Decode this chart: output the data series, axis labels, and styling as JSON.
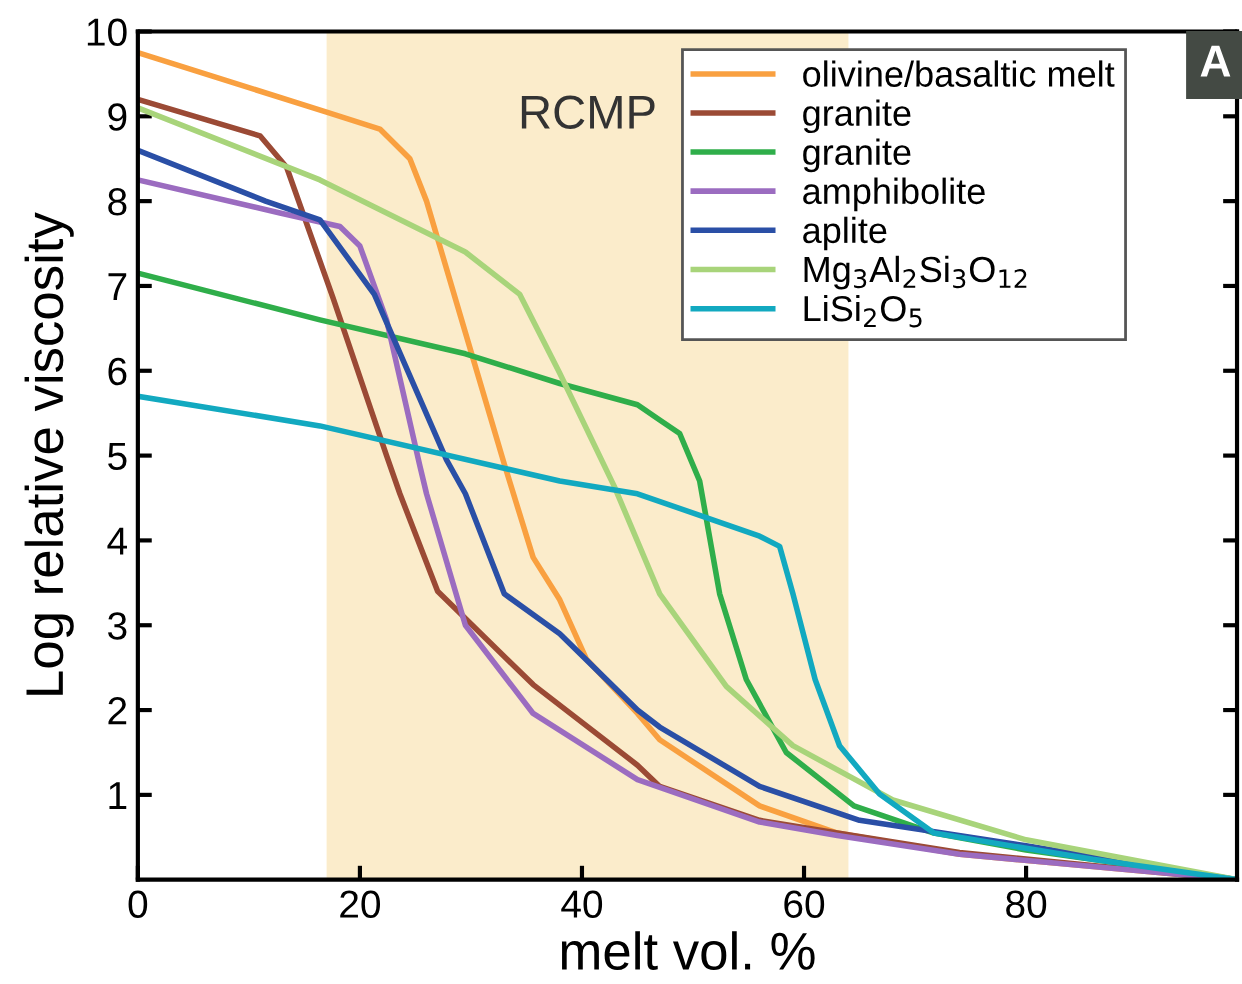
{
  "chart_data": {
    "type": "line",
    "xlabel": "melt vol. %",
    "ylabel": "Log relative viscosity",
    "xlim": [
      0,
      99
    ],
    "ylim": [
      0,
      10
    ],
    "xticks": [
      0,
      20,
      40,
      60,
      80
    ],
    "yticks": [
      1,
      2,
      3,
      4,
      5,
      6,
      7,
      8,
      9,
      10
    ],
    "grid": false,
    "legend": "top right",
    "marker": "none",
    "line_style": "solid",
    "bands": [
      {
        "axis": "x",
        "from": 17,
        "to": 64,
        "label": "RCMP",
        "color": "#fbeccb"
      }
    ],
    "annotations": [
      "A"
    ],
    "series": [
      {
        "name": "olivine/basaltic melt",
        "color": "#f9a040",
        "x": [
          0,
          17,
          21.8,
          24.5,
          26,
          29.5,
          33,
          35.6,
          38,
          40.4,
          45,
          47,
          56,
          63,
          74,
          99
        ],
        "values": [
          9.75,
          9.05,
          8.85,
          8.5,
          8.0,
          6.45,
          4.9,
          3.8,
          3.3,
          2.6,
          1.96,
          1.65,
          0.87,
          0.55,
          0.3,
          0
        ]
      },
      {
        "name": "granite",
        "color": "#9b4a35",
        "x": [
          0,
          11,
          13.4,
          17.6,
          22.4,
          23.6,
          27,
          35.6,
          45,
          47,
          56,
          63,
          74,
          99
        ],
        "values": [
          9.2,
          8.77,
          8.4,
          6.85,
          5.0,
          4.55,
          3.4,
          2.3,
          1.35,
          1.1,
          0.7,
          0.55,
          0.32,
          0
        ]
      },
      {
        "name": "granite",
        "color": "#2fae4a",
        "x": [
          0,
          16.4,
          29.5,
          38,
          45,
          47,
          48.8,
          50.6,
          52.4,
          54.8,
          58.4,
          64.5,
          71.7,
          80,
          99
        ],
        "values": [
          7.15,
          6.6,
          6.2,
          5.85,
          5.6,
          5.42,
          5.26,
          4.7,
          3.37,
          2.36,
          1.5,
          0.87,
          0.55,
          0.35,
          0
        ]
      },
      {
        "name": "amphibolite",
        "color": "#9b6cc0",
        "x": [
          0,
          12.8,
          18.2,
          20,
          22.4,
          25.4,
          26,
          29.5,
          35.6,
          45,
          56,
          63,
          74,
          99
        ],
        "values": [
          8.25,
          7.86,
          7.7,
          7.47,
          6.6,
          4.88,
          4.55,
          3.0,
          1.96,
          1.18,
          0.68,
          0.52,
          0.3,
          0
        ]
      },
      {
        "name": "aplite",
        "color": "#2a4fa6",
        "x": [
          0,
          11.5,
          16.4,
          21.3,
          27.8,
          29.5,
          33,
          38,
          45,
          47,
          56,
          65,
          80,
          99
        ],
        "values": [
          8.6,
          8.0,
          7.78,
          6.9,
          4.95,
          4.55,
          3.37,
          2.9,
          2.0,
          1.8,
          1.1,
          0.7,
          0.4,
          0
        ]
      },
      {
        "name": "Mg$_{3}$Al$_{2}$Si$_{3}$O$_{12}$",
        "color": "#a8d47a",
        "x": [
          0,
          16.4,
          29.5,
          34.4,
          38,
          42.9,
          47,
          53,
          59,
          68,
          80,
          99
        ],
        "values": [
          9.1,
          8.25,
          7.4,
          6.9,
          5.97,
          4.64,
          3.37,
          2.28,
          1.58,
          0.94,
          0.47,
          0
        ]
      },
      {
        "name": "LiSi$_{2}$O$_{5}$",
        "color": "#12a9c0",
        "x": [
          0,
          16.4,
          38,
          45,
          56,
          57.8,
          59,
          61,
          63.2,
          66.8,
          71.7,
          86,
          99
        ],
        "values": [
          5.7,
          5.35,
          4.7,
          4.55,
          4.05,
          3.93,
          3.37,
          2.36,
          1.58,
          1.01,
          0.55,
          0.24,
          0
        ]
      }
    ]
  }
}
